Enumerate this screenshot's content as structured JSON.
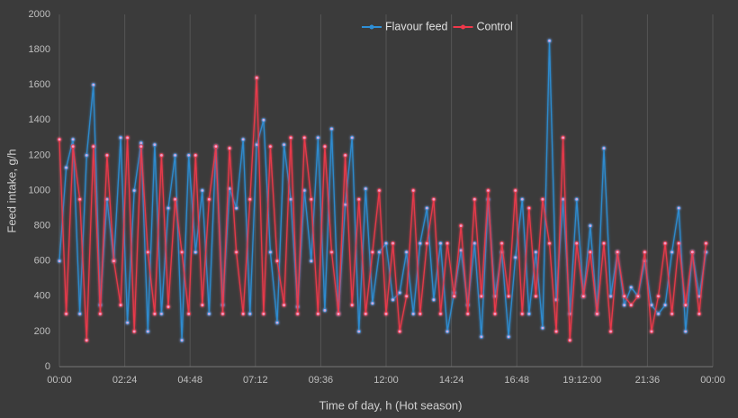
{
  "chart_data": {
    "type": "line",
    "x_label": "Time of day, h (Hot season)",
    "y_label": "Feed intake, g/h",
    "x": [
      0,
      0.25,
      0.5,
      0.75,
      1,
      1.25,
      1.5,
      1.75,
      2,
      2.25,
      2.5,
      2.75,
      3,
      3.25,
      3.5,
      3.75,
      4,
      4.25,
      4.5,
      4.75,
      5,
      5.25,
      5.5,
      5.75,
      6,
      6.25,
      6.5,
      6.75,
      7,
      7.25,
      7.5,
      7.75,
      8,
      8.25,
      8.5,
      8.75,
      9,
      9.25,
      9.5,
      9.75,
      10,
      10.25,
      10.5,
      10.75,
      11,
      11.25,
      11.5,
      11.75,
      12,
      12.25,
      12.5,
      12.75,
      13,
      13.25,
      13.5,
      13.75,
      14,
      14.25,
      14.5,
      14.75,
      15,
      15.25,
      15.5,
      15.75,
      16,
      16.25,
      16.5,
      16.75,
      17,
      17.25,
      17.5,
      17.75,
      18,
      18.25,
      18.5,
      18.75,
      19,
      19.25,
      19.5,
      19.75,
      20,
      20.25,
      20.5,
      20.75,
      21,
      21.25,
      21.5,
      21.75,
      22,
      22.25,
      22.5,
      22.75,
      23,
      23.25,
      23.5,
      23.75
    ],
    "series": [
      {
        "name": "Flavour feed",
        "color": "#2e8fd6",
        "values": [
          600,
          1130,
          1290,
          300,
          1200,
          1600,
          350,
          950,
          600,
          1300,
          250,
          1000,
          1270,
          200,
          1260,
          300,
          900,
          1200,
          150,
          1200,
          650,
          1000,
          300,
          1250,
          350,
          1010,
          900,
          1290,
          300,
          1260,
          1400,
          650,
          250,
          1260,
          950,
          340,
          1000,
          600,
          1300,
          320,
          1350,
          300,
          920,
          1300,
          200,
          1010,
          360,
          650,
          700,
          380,
          420,
          650,
          300,
          700,
          900,
          380,
          700,
          200,
          420,
          660,
          350,
          700,
          170,
          950,
          400,
          650,
          170,
          620,
          950,
          300,
          650,
          220,
          1850,
          380,
          950,
          300,
          950,
          400,
          800,
          300,
          1240,
          400,
          650,
          350,
          450,
          400,
          600,
          350,
          300,
          350,
          650,
          900,
          200,
          650,
          400,
          650
        ]
      },
      {
        "name": "Control",
        "color": "#f0384a",
        "values": [
          1290,
          300,
          1250,
          950,
          150,
          1250,
          300,
          1200,
          600,
          350,
          1300,
          200,
          1250,
          650,
          300,
          1200,
          340,
          950,
          650,
          300,
          1200,
          350,
          950,
          1250,
          300,
          1240,
          650,
          300,
          950,
          1640,
          300,
          1250,
          600,
          350,
          1300,
          300,
          1300,
          950,
          300,
          1250,
          650,
          300,
          1200,
          350,
          950,
          300,
          650,
          1000,
          300,
          700,
          200,
          400,
          1000,
          300,
          700,
          950,
          300,
          700,
          400,
          800,
          300,
          950,
          400,
          1000,
          300,
          700,
          400,
          1000,
          300,
          900,
          400,
          950,
          700,
          200,
          1300,
          150,
          700,
          400,
          650,
          300,
          700,
          200,
          650,
          400,
          350,
          400,
          650,
          200,
          400,
          700,
          300,
          700,
          350,
          650,
          300,
          700
        ]
      }
    ],
    "xlim": [
      0,
      24
    ],
    "xticks": [
      {
        "value": 0,
        "label": "00:00"
      },
      {
        "value": 2.4,
        "label": "02:24"
      },
      {
        "value": 4.8,
        "label": "04:48"
      },
      {
        "value": 7.2,
        "label": "07:12"
      },
      {
        "value": 9.6,
        "label": "09:36"
      },
      {
        "value": 12,
        "label": "12:00"
      },
      {
        "value": 14.4,
        "label": "14:24"
      },
      {
        "value": 16.8,
        "label": "16:48"
      },
      {
        "value": 19.2,
        "label": "19:12:00"
      },
      {
        "value": 21.6,
        "label": "21:36"
      },
      {
        "value": 24,
        "label": "00:00"
      }
    ],
    "ylim": [
      0,
      2000
    ],
    "yticks": [
      0,
      200,
      400,
      600,
      800,
      1000,
      1200,
      1400,
      1600,
      1800,
      2000
    ],
    "grid": true,
    "legend": "top"
  }
}
